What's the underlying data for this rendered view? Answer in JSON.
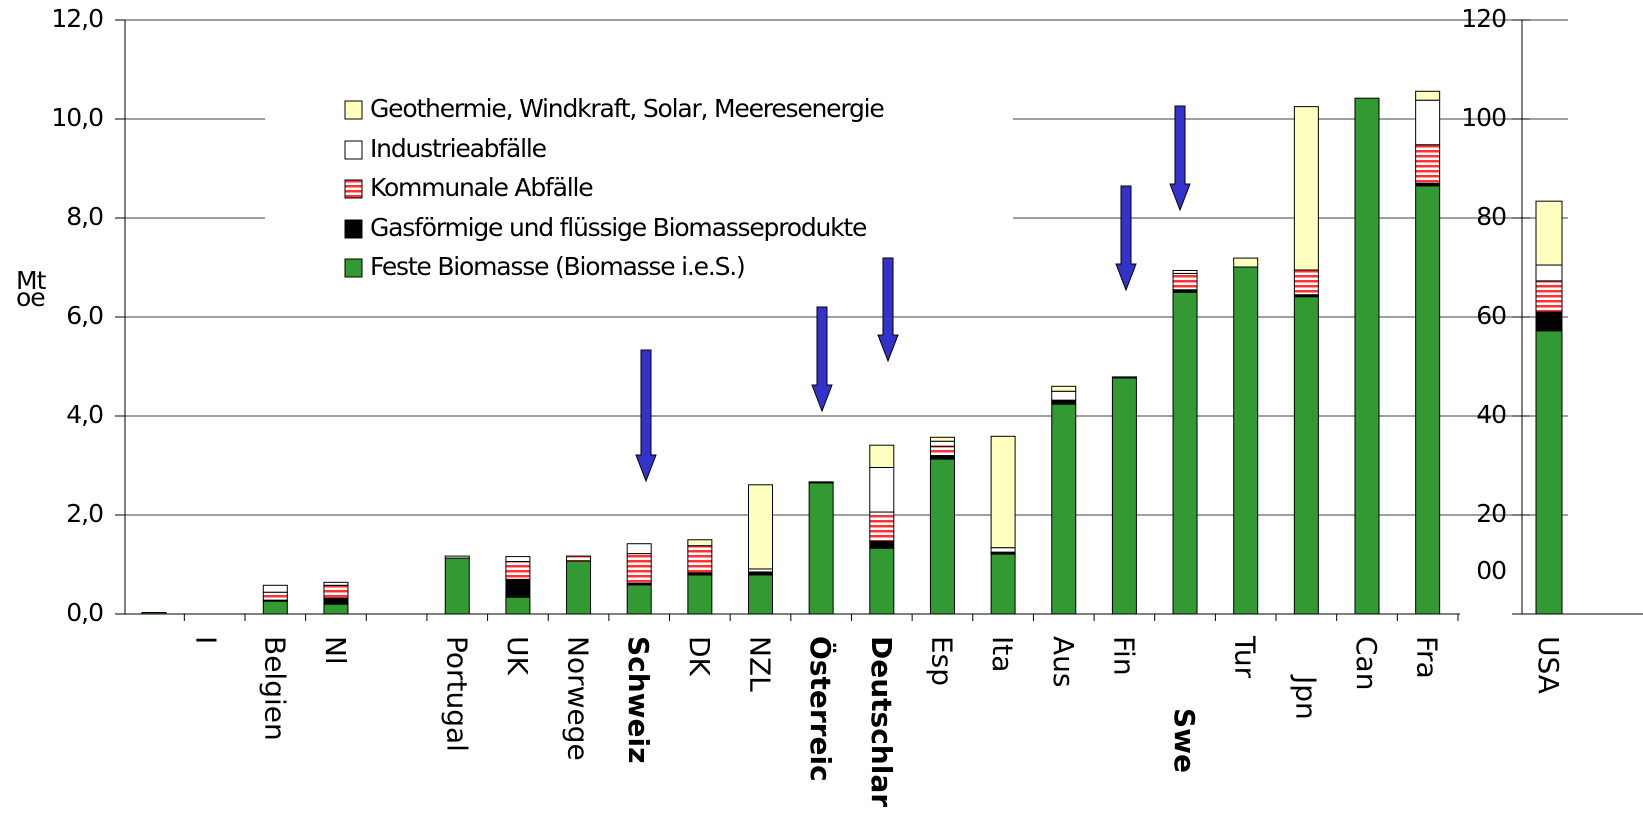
{
  "chart_data": [
    {
      "type": "stacked_bar",
      "ylabel_lines": [
        "Mt",
        "oe"
      ],
      "categories": [
        null,
        "I",
        "Belgien",
        "Nl",
        null,
        "Portugal",
        "UK",
        "Norwege",
        "Schweiz",
        "DK",
        "NZL",
        "Österreic",
        "Deutschlar",
        "Esp",
        "Ita",
        "Aus",
        "Fin",
        "Swe",
        "Tur",
        "Jpn",
        "Can",
        "Fra"
      ],
      "ylim": [
        0,
        12
      ],
      "yticks": [
        {
          "value": 0,
          "label": "0,0"
        },
        {
          "value": 2,
          "label": "2,0"
        },
        {
          "value": 4,
          "label": "4,0"
        },
        {
          "value": 6,
          "label": "6,0"
        },
        {
          "value": 8,
          "label": "8,0"
        },
        {
          "value": 10,
          "label": "10,0"
        },
        {
          "value": 12,
          "label": "12,0"
        }
      ],
      "grid": true,
      "series": [
        {
          "name": "Feste Biomasse (Biomasse i.e.S.)",
          "color": "#339933",
          "values": [
            0.03,
            0,
            0.26,
            0.2,
            0,
            1.13,
            0.34,
            1.07,
            0.59,
            0.79,
            0.79,
            2.65,
            1.33,
            3.13,
            1.21,
            4.24,
            4.77,
            6.5,
            7.01,
            6.41,
            10.42,
            8.65
          ]
        },
        {
          "name": "Gasförmige und flüssige Biomasseprodukte",
          "color": "#000000",
          "values": [
            0,
            0,
            0.02,
            0.12,
            0,
            0,
            0.36,
            0,
            0.03,
            0.04,
            0.06,
            0.02,
            0.14,
            0.07,
            0.04,
            0.08,
            0.02,
            0.05,
            0,
            0.04,
            0,
            0.05
          ]
        },
        {
          "name": "Kommunale Abfälle",
          "color": "#ff3333",
          "values": [
            0,
            0,
            0.16,
            0.26,
            0,
            0,
            0.36,
            0.1,
            0.6,
            0.55,
            0,
            0,
            0.59,
            0.19,
            0,
            0,
            0,
            0.33,
            0,
            0.5,
            0,
            0.78
          ]
        },
        {
          "name": "Industrieabfälle",
          "color": "#ffffff",
          "values": [
            0,
            0,
            0.14,
            0.06,
            0,
            0.04,
            0.1,
            0,
            0.2,
            0,
            0.06,
            0,
            0.9,
            0.1,
            0.09,
            0.18,
            0,
            0.06,
            0,
            0,
            0,
            0.9
          ]
        },
        {
          "name": "Geothermie, Windkraft, Solar, Meeresenergie",
          "color": "#ffffc0",
          "values": [
            0,
            0,
            0,
            0,
            0,
            0,
            0,
            0,
            0,
            0.12,
            1.7,
            0,
            0.45,
            0.08,
            2.25,
            0.1,
            0,
            0,
            0.18,
            3.3,
            0,
            0.18
          ]
        }
      ]
    },
    {
      "type": "stacked_bar",
      "categories": [
        "USA"
      ],
      "y2lim": [
        0,
        120
      ],
      "y2ticks": [
        {
          "value": 0,
          "label": "00"
        },
        20,
        40,
        60,
        80,
        100,
        120
      ],
      "series": [
        {
          "color": "#339933",
          "values": [
            57.2
          ],
          "axis": "y2"
        },
        {
          "color": "#000000",
          "values": [
            3.8
          ],
          "axis": "y2"
        },
        {
          "color": "#ff3333",
          "values": [
            6.3
          ],
          "axis": "y2"
        },
        {
          "color": "#ffffff",
          "values": [
            3.2
          ],
          "axis": "y2"
        },
        {
          "color": "#ffffc0",
          "values": [
            12.9
          ],
          "axis": "y2"
        }
      ]
    }
  ]
}
